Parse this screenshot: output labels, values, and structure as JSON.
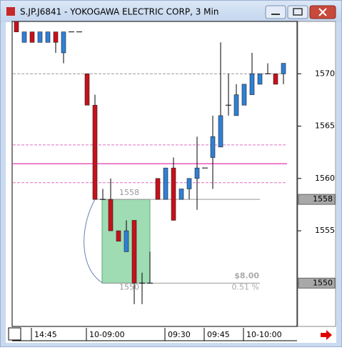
{
  "window": {
    "title": "S.JP.J6841 - YOKOGAWA ELECTRIC CORP, 3 Min"
  },
  "chart_data": {
    "type": "candlestick",
    "open": [
      1575,
      1573,
      1574,
      1573,
      1573,
      1574,
      1572,
      1574,
      1574,
      1570,
      1567,
      1558,
      1558,
      1555,
      1553,
      1556,
      1550,
      1550,
      1560,
      1558,
      1561,
      1558,
      1559,
      1560,
      1561,
      1562,
      1563,
      1567,
      1566,
      1567,
      1568,
      1569,
      1570,
      1570,
      1570
    ],
    "high": [
      1575,
      1574,
      1574,
      1574,
      1574,
      1574,
      1574,
      1574,
      1574,
      1570,
      1568,
      1559,
      1560,
      1555,
      1556,
      1556,
      1551,
      1553,
      1560,
      1561,
      1562,
      1559,
      1560,
      1564,
      1561,
      1566,
      1573,
      1570,
      1569,
      1569,
      1572,
      1570,
      1571,
      1570,
      1571
    ],
    "low": [
      1574,
      1573,
      1573,
      1573,
      1573,
      1572,
      1571,
      1574,
      1574,
      1567,
      1558,
      1558,
      1555,
      1554,
      1553,
      1548,
      1548,
      1550,
      1558,
      1558,
      1556,
      1558,
      1558,
      1557,
      1561,
      1559,
      1563,
      1566,
      1566,
      1567,
      1568,
      1569,
      1570,
      1569,
      1569
    ],
    "close": [
      1574,
      1574,
      1573,
      1574,
      1574,
      1573,
      1574,
      1574,
      1574,
      1567,
      1558,
      1558,
      1555,
      1554,
      1555,
      1550,
      1550,
      1550,
      1558,
      1561,
      1556,
      1559,
      1560,
      1561,
      1561,
      1564,
      1566,
      1567,
      1568,
      1569,
      1570,
      1570,
      1570,
      1569,
      1571
    ],
    "up_color": "#2f7fd6",
    "down_color": "#c8101a",
    "ylim": [
      1546,
      1575
    ],
    "yticks": [
      1550,
      1555,
      1560,
      1565,
      1570
    ],
    "xticks": [
      {
        "value": 2,
        "label": "14:45"
      },
      {
        "value": 9,
        "label": "10-09:00"
      },
      {
        "value": 19,
        "label": "09:30"
      },
      {
        "value": 24,
        "label": "09:45"
      },
      {
        "value": 29,
        "label": "10-10:00"
      }
    ],
    "hlines": [
      {
        "value": 1570,
        "color": "#999999",
        "style": "dashed"
      },
      {
        "value": 1563.2,
        "color": "#e070c0",
        "style": "dashed"
      },
      {
        "value": 1561.4,
        "color": "#e858b8",
        "style": "solid"
      },
      {
        "value": 1559.6,
        "color": "#e070c0",
        "style": "dashed"
      }
    ],
    "price_markers": [
      1558,
      1550
    ],
    "measure": {
      "from": 1558,
      "to": 1550,
      "amount": "$8.00",
      "percent": "0.51 %"
    }
  }
}
